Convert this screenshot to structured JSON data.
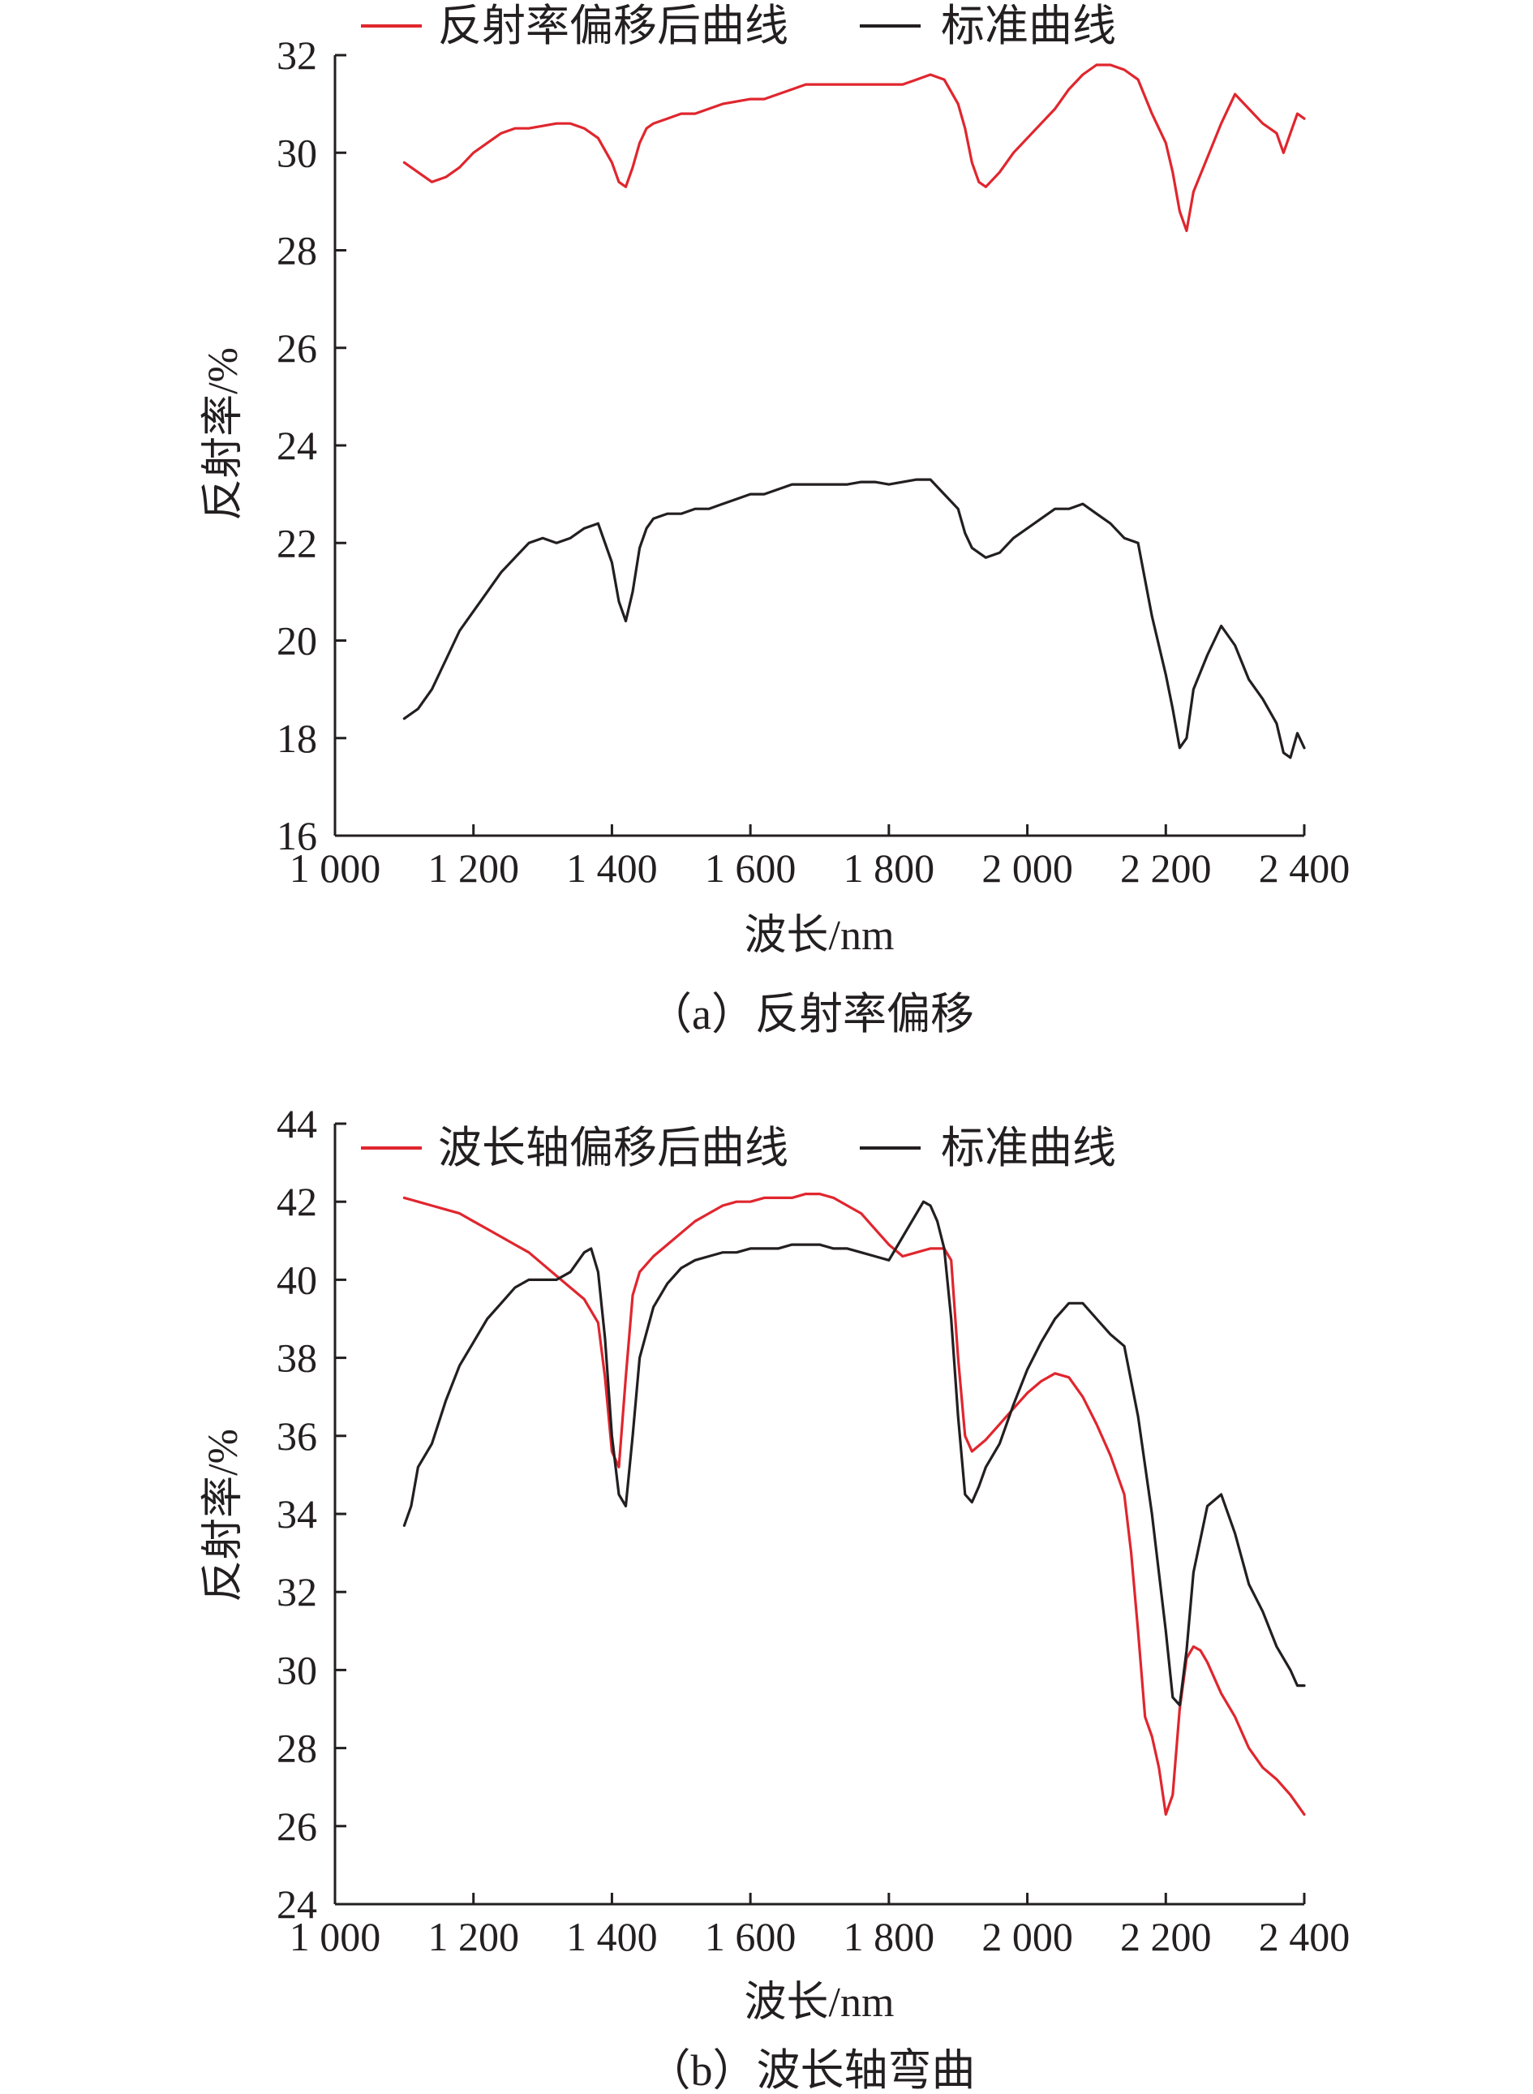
{
  "colors": {
    "offset_series": "#e0262e",
    "standard_series": "#231f20",
    "axis": "#231f20"
  },
  "chart_data": [
    {
      "type": "line",
      "caption": "（a）反射率偏移",
      "xlabel": "波长/nm",
      "ylabel": "反射率/%",
      "xlim": [
        1000,
        2400
      ],
      "ylim": [
        16,
        32
      ],
      "x_ticks": [
        1000,
        1200,
        1400,
        1600,
        1800,
        2000,
        2200,
        2400
      ],
      "x_tick_labels": [
        "1 000",
        "1 200",
        "1 400",
        "1 600",
        "1 800",
        "2 000",
        "2 200",
        "2 400"
      ],
      "y_ticks": [
        16,
        18,
        20,
        22,
        24,
        26,
        28,
        30,
        32
      ],
      "y_tick_labels": [
        "16",
        "18",
        "20",
        "22",
        "24",
        "26",
        "28",
        "30",
        "32"
      ],
      "grid": false,
      "legend_position": "top",
      "series": [
        {
          "name": "反射率偏移后曲线",
          "color": "#e0262e",
          "x": [
            1100,
            1120,
            1140,
            1160,
            1180,
            1200,
            1220,
            1240,
            1260,
            1280,
            1300,
            1320,
            1340,
            1360,
            1380,
            1400,
            1410,
            1420,
            1430,
            1440,
            1450,
            1460,
            1480,
            1500,
            1520,
            1540,
            1560,
            1580,
            1600,
            1620,
            1640,
            1660,
            1680,
            1700,
            1720,
            1740,
            1760,
            1780,
            1800,
            1820,
            1840,
            1860,
            1880,
            1900,
            1910,
            1920,
            1930,
            1940,
            1960,
            1980,
            2000,
            2020,
            2040,
            2060,
            2080,
            2100,
            2120,
            2140,
            2160,
            2180,
            2200,
            2210,
            2220,
            2230,
            2240,
            2260,
            2280,
            2300,
            2320,
            2340,
            2360,
            2370,
            2380,
            2390,
            2400
          ],
          "y": [
            29.8,
            29.6,
            29.4,
            29.5,
            29.7,
            30.0,
            30.2,
            30.4,
            30.5,
            30.5,
            30.55,
            30.6,
            30.6,
            30.5,
            30.3,
            29.8,
            29.4,
            29.3,
            29.7,
            30.2,
            30.5,
            30.6,
            30.7,
            30.8,
            30.8,
            30.9,
            31.0,
            31.05,
            31.1,
            31.1,
            31.2,
            31.3,
            31.4,
            31.4,
            31.4,
            31.4,
            31.4,
            31.4,
            31.4,
            31.4,
            31.5,
            31.6,
            31.5,
            31.0,
            30.5,
            29.8,
            29.4,
            29.3,
            29.6,
            30.0,
            30.3,
            30.6,
            30.9,
            31.3,
            31.6,
            31.8,
            31.8,
            31.7,
            31.5,
            30.8,
            30.2,
            29.6,
            28.8,
            28.4,
            29.2,
            29.9,
            30.6,
            31.2,
            30.9,
            30.6,
            30.4,
            30.0,
            30.4,
            30.8,
            30.7
          ]
        },
        {
          "name": "标准曲线",
          "color": "#231f20",
          "x": [
            1100,
            1120,
            1140,
            1160,
            1180,
            1200,
            1220,
            1240,
            1260,
            1280,
            1300,
            1320,
            1340,
            1360,
            1380,
            1400,
            1410,
            1420,
            1430,
            1440,
            1450,
            1460,
            1480,
            1500,
            1520,
            1540,
            1560,
            1580,
            1600,
            1620,
            1640,
            1660,
            1680,
            1700,
            1720,
            1740,
            1760,
            1780,
            1800,
            1820,
            1840,
            1860,
            1880,
            1900,
            1910,
            1920,
            1930,
            1940,
            1960,
            1980,
            2000,
            2020,
            2040,
            2060,
            2080,
            2100,
            2120,
            2140,
            2160,
            2180,
            2200,
            2210,
            2220,
            2230,
            2240,
            2260,
            2280,
            2300,
            2320,
            2340,
            2360,
            2370,
            2380,
            2390,
            2400
          ],
          "y": [
            18.4,
            18.6,
            19.0,
            19.6,
            20.2,
            20.6,
            21.0,
            21.4,
            21.7,
            22.0,
            22.1,
            22.0,
            22.1,
            22.3,
            22.4,
            21.6,
            20.8,
            20.4,
            21.0,
            21.9,
            22.3,
            22.5,
            22.6,
            22.6,
            22.7,
            22.7,
            22.8,
            22.9,
            23.0,
            23.0,
            23.1,
            23.2,
            23.2,
            23.2,
            23.2,
            23.2,
            23.25,
            23.25,
            23.2,
            23.25,
            23.3,
            23.3,
            23.0,
            22.7,
            22.2,
            21.9,
            21.8,
            21.7,
            21.8,
            22.1,
            22.3,
            22.5,
            22.7,
            22.7,
            22.8,
            22.6,
            22.4,
            22.1,
            22.0,
            20.5,
            19.3,
            18.6,
            17.8,
            18.0,
            19.0,
            19.7,
            20.3,
            19.9,
            19.2,
            18.8,
            18.3,
            17.7,
            17.6,
            18.1,
            17.8
          ]
        }
      ]
    },
    {
      "type": "line",
      "caption": "（b）波长轴弯曲",
      "xlabel": "波长/nm",
      "ylabel": "反射率/%",
      "xlim": [
        1000,
        2400
      ],
      "ylim": [
        24,
        44
      ],
      "x_ticks": [
        1000,
        1200,
        1400,
        1600,
        1800,
        2000,
        2200,
        2400
      ],
      "x_tick_labels": [
        "1 000",
        "1 200",
        "1 400",
        "1 600",
        "1 800",
        "2 000",
        "2 200",
        "2 400"
      ],
      "y_ticks": [
        24,
        26,
        28,
        30,
        32,
        34,
        36,
        38,
        40,
        42,
        44
      ],
      "y_tick_labels": [
        "24",
        "26",
        "28",
        "30",
        "32",
        "34",
        "36",
        "38",
        "40",
        "42",
        "44"
      ],
      "grid": false,
      "legend_position": "top",
      "series": [
        {
          "name": "波长轴偏移后曲线",
          "color": "#e0262e",
          "x": [
            1100,
            1120,
            1140,
            1160,
            1180,
            1200,
            1220,
            1240,
            1260,
            1280,
            1300,
            1320,
            1340,
            1360,
            1380,
            1390,
            1400,
            1410,
            1420,
            1430,
            1440,
            1460,
            1480,
            1500,
            1520,
            1540,
            1560,
            1580,
            1600,
            1620,
            1640,
            1660,
            1680,
            1700,
            1720,
            1740,
            1760,
            1780,
            1800,
            1820,
            1840,
            1860,
            1880,
            1890,
            1900,
            1910,
            1920,
            1940,
            1960,
            1980,
            2000,
            2020,
            2040,
            2060,
            2080,
            2100,
            2120,
            2140,
            2150,
            2160,
            2170,
            2180,
            2190,
            2200,
            2210,
            2220,
            2230,
            2240,
            2250,
            2260,
            2280,
            2300,
            2320,
            2340,
            2360,
            2380,
            2400
          ],
          "y": [
            42.1,
            42.0,
            41.9,
            41.8,
            41.7,
            41.5,
            41.3,
            41.1,
            40.9,
            40.7,
            40.4,
            40.1,
            39.8,
            39.5,
            38.9,
            37.5,
            35.6,
            35.2,
            37.5,
            39.6,
            40.2,
            40.6,
            40.9,
            41.2,
            41.5,
            41.7,
            41.9,
            42.0,
            42.0,
            42.1,
            42.1,
            42.1,
            42.2,
            42.2,
            42.1,
            41.9,
            41.7,
            41.3,
            40.9,
            40.6,
            40.7,
            40.8,
            40.8,
            40.5,
            38.0,
            36.0,
            35.6,
            35.9,
            36.3,
            36.7,
            37.1,
            37.4,
            37.6,
            37.5,
            37.0,
            36.3,
            35.5,
            34.5,
            33.0,
            31.0,
            28.8,
            28.3,
            27.5,
            26.3,
            26.8,
            29.0,
            30.3,
            30.6,
            30.5,
            30.2,
            29.4,
            28.8,
            28.0,
            27.5,
            27.2,
            26.8,
            26.3
          ]
        },
        {
          "name": "标准曲线",
          "color": "#231f20",
          "x": [
            1100,
            1110,
            1120,
            1130,
            1140,
            1160,
            1180,
            1200,
            1220,
            1240,
            1260,
            1280,
            1300,
            1320,
            1340,
            1360,
            1370,
            1380,
            1390,
            1400,
            1410,
            1420,
            1430,
            1440,
            1460,
            1480,
            1500,
            1520,
            1540,
            1560,
            1580,
            1600,
            1620,
            1640,
            1660,
            1680,
            1700,
            1720,
            1740,
            1760,
            1780,
            1800,
            1820,
            1840,
            1850,
            1860,
            1870,
            1880,
            1890,
            1900,
            1910,
            1920,
            1930,
            1940,
            1960,
            1980,
            2000,
            2020,
            2040,
            2060,
            2080,
            2100,
            2120,
            2140,
            2160,
            2180,
            2200,
            2210,
            2220,
            2230,
            2240,
            2260,
            2280,
            2300,
            2320,
            2340,
            2360,
            2380,
            2390,
            2400
          ],
          "y": [
            33.7,
            34.2,
            35.2,
            35.5,
            35.8,
            36.9,
            37.8,
            38.4,
            39.0,
            39.4,
            39.8,
            40.0,
            40.0,
            40.0,
            40.2,
            40.7,
            40.8,
            40.2,
            38.5,
            36.0,
            34.5,
            34.2,
            36.0,
            38.0,
            39.3,
            39.9,
            40.3,
            40.5,
            40.6,
            40.7,
            40.7,
            40.8,
            40.8,
            40.8,
            40.9,
            40.9,
            40.9,
            40.8,
            40.8,
            40.7,
            40.6,
            40.5,
            41.1,
            41.7,
            42.0,
            41.9,
            41.5,
            40.8,
            39.0,
            36.5,
            34.5,
            34.3,
            34.7,
            35.2,
            35.8,
            36.8,
            37.7,
            38.4,
            39.0,
            39.4,
            39.4,
            39.0,
            38.6,
            38.3,
            36.5,
            34.0,
            31.0,
            29.3,
            29.1,
            30.5,
            32.5,
            34.2,
            34.5,
            33.5,
            32.2,
            31.5,
            30.6,
            30.0,
            29.6,
            29.6
          ]
        }
      ]
    }
  ]
}
